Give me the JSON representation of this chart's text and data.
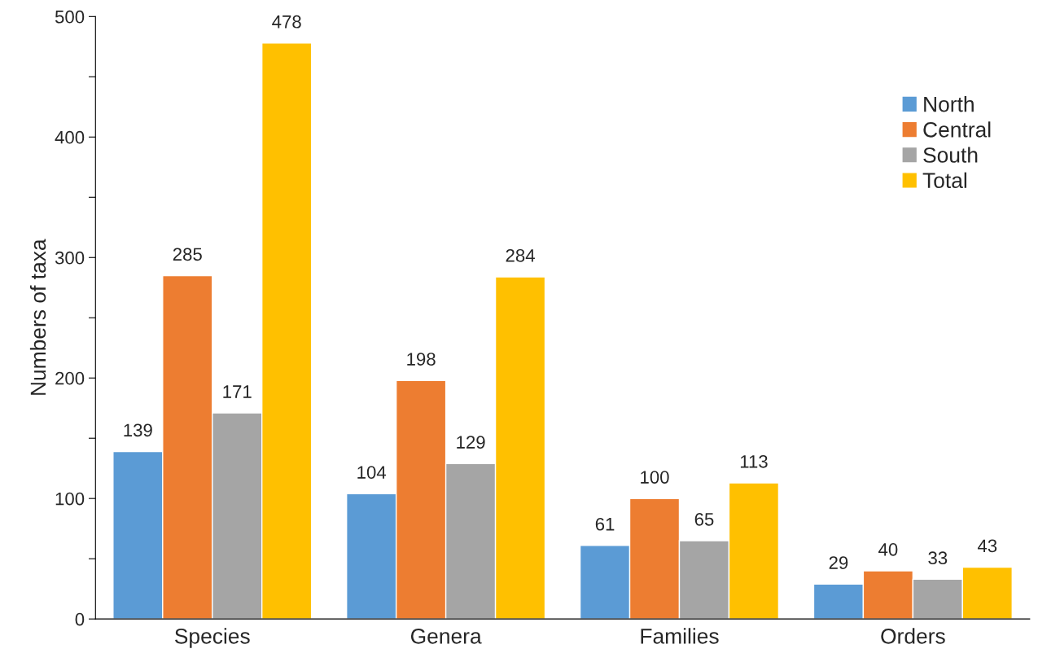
{
  "chart_data": {
    "type": "bar",
    "ylabel": "Numbers of taxa",
    "categories": [
      "Species",
      "Genera",
      "Families",
      "Orders"
    ],
    "series": [
      {
        "name": "North",
        "color": "#5b9bd5",
        "values": [
          139,
          104,
          61,
          29
        ]
      },
      {
        "name": "Central",
        "color": "#ed7d31",
        "values": [
          285,
          198,
          100,
          40
        ]
      },
      {
        "name": "South",
        "color": "#a5a5a5",
        "values": [
          171,
          129,
          65,
          33
        ]
      },
      {
        "name": "Total",
        "color": "#ffc000",
        "values": [
          478,
          284,
          113,
          43
        ]
      }
    ],
    "ylim": [
      0,
      500
    ],
    "yticks": [
      0,
      {
        "value": 50,
        "label": null
      },
      100,
      {
        "value": 150,
        "label": null
      },
      200,
      {
        "value": 250,
        "label": null
      },
      300,
      {
        "value": 350,
        "label": null
      },
      400,
      {
        "value": 450,
        "label": null
      },
      500
    ],
    "data_labels": true,
    "grid": false,
    "legend": "top right"
  }
}
